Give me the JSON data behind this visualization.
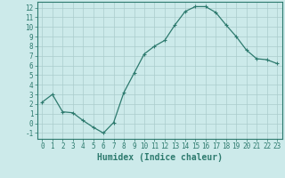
{
  "x": [
    0,
    1,
    2,
    3,
    4,
    5,
    6,
    7,
    8,
    9,
    10,
    11,
    12,
    13,
    14,
    15,
    16,
    17,
    18,
    19,
    20,
    21,
    22,
    23
  ],
  "y": [
    2.2,
    3.0,
    1.2,
    1.1,
    0.3,
    -0.4,
    -1.0,
    0.1,
    3.2,
    5.2,
    7.2,
    8.0,
    8.6,
    10.2,
    11.6,
    12.1,
    12.1,
    11.5,
    10.2,
    9.0,
    7.6,
    6.7,
    6.6,
    6.2
  ],
  "line_color": "#2d7a6e",
  "marker": "+",
  "marker_size": 3,
  "bg_color": "#cceaea",
  "grid_color": "#aacccc",
  "xlabel": "Humidex (Indice chaleur)",
  "xlabel_fontsize": 7,
  "ylabel_ticks": [
    -1,
    0,
    1,
    2,
    3,
    4,
    5,
    6,
    7,
    8,
    9,
    10,
    11,
    12
  ],
  "xlim": [
    -0.5,
    23.5
  ],
  "ylim": [
    -1.6,
    12.6
  ],
  "tick_fontsize": 5.5,
  "linewidth": 0.9
}
